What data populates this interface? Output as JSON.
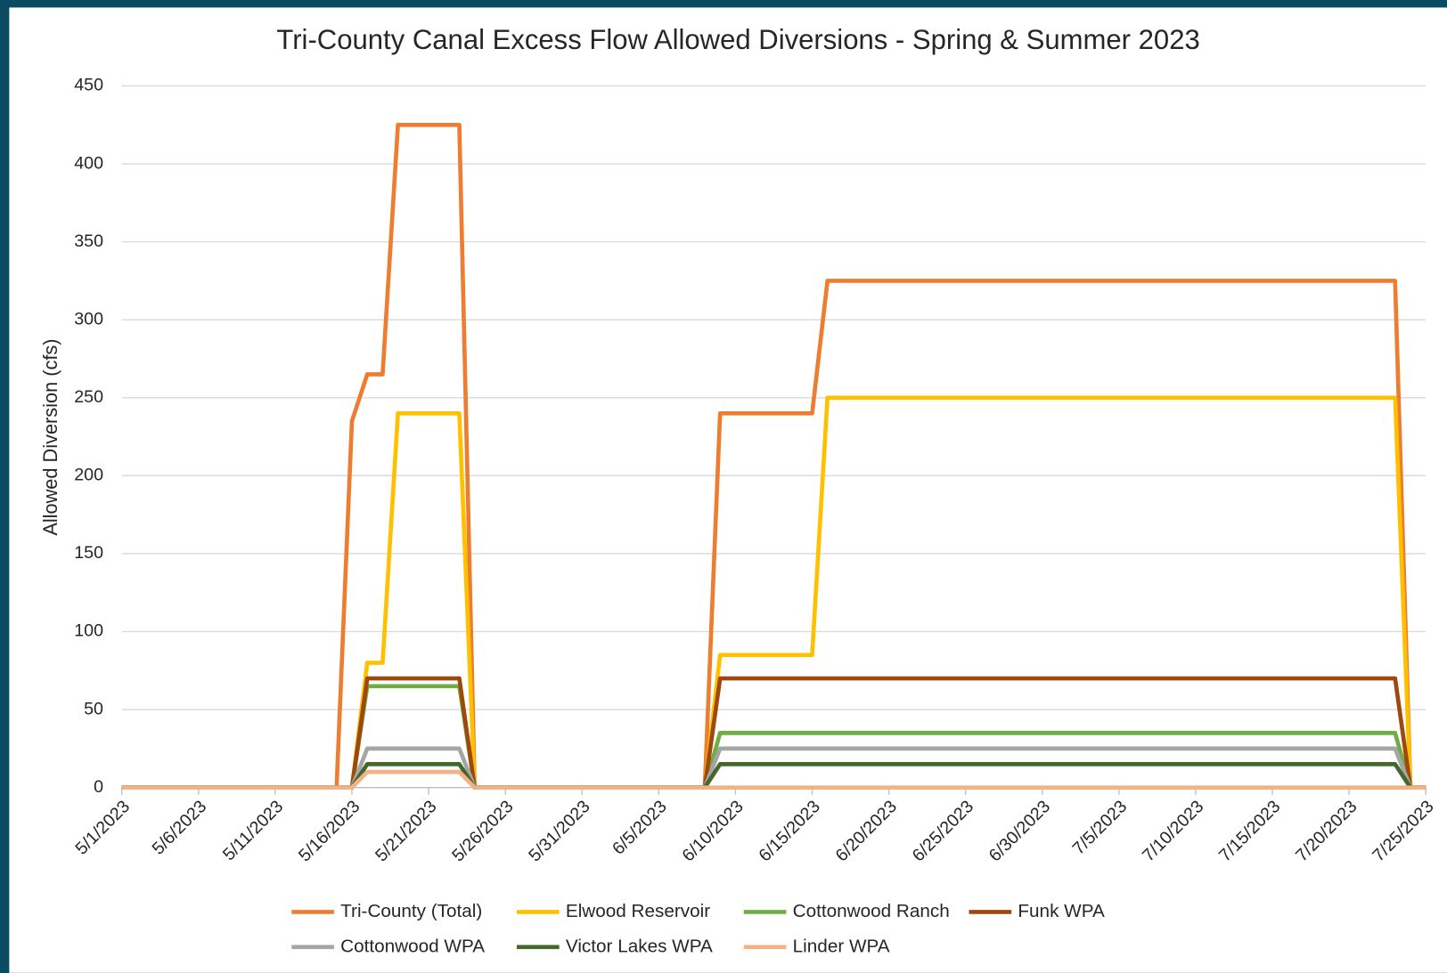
{
  "chart_data": {
    "type": "line",
    "title": "Tri-County Canal Excess Flow Allowed Diversions - Spring & Summer 2023",
    "y_label": "Allowed Diversion (cfs)",
    "x": [
      "5/1/2023",
      "5/15/2023",
      "5/16/2023",
      "5/17/2023",
      "5/18/2023",
      "5/19/2023",
      "5/23/2023",
      "5/24/2023",
      "6/8/2023",
      "6/9/2023",
      "6/15/2023",
      "6/16/2023",
      "7/23/2023",
      "7/24/2023",
      "7/25/2023"
    ],
    "series": [
      {
        "name": "Tri-County (Total)",
        "color": "#ed7d31",
        "values": [
          0,
          0,
          235,
          265,
          265,
          425,
          425,
          0,
          0,
          240,
          240,
          325,
          325,
          0,
          0
        ]
      },
      {
        "name": "Elwood Reservoir",
        "color": "#ffc000",
        "values": [
          0,
          0,
          0,
          80,
          80,
          240,
          240,
          0,
          0,
          85,
          85,
          250,
          250,
          0,
          0
        ]
      },
      {
        "name": "Cottonwood Ranch",
        "color": "#70ad47",
        "values": [
          0,
          0,
          0,
          65,
          65,
          65,
          65,
          0,
          0,
          35,
          35,
          35,
          35,
          0,
          0
        ]
      },
      {
        "name": "Funk WPA",
        "color": "#9e480e",
        "values": [
          0,
          0,
          0,
          70,
          70,
          70,
          70,
          0,
          0,
          70,
          70,
          70,
          70,
          0,
          0
        ]
      },
      {
        "name": "Cottonwood WPA",
        "color": "#a5a5a5",
        "values": [
          0,
          0,
          0,
          25,
          25,
          25,
          25,
          0,
          0,
          25,
          25,
          25,
          25,
          0,
          0
        ]
      },
      {
        "name": "Victor Lakes WPA",
        "color": "#43682b",
        "values": [
          0,
          0,
          0,
          15,
          15,
          15,
          15,
          0,
          0,
          15,
          15,
          15,
          15,
          0,
          0
        ]
      },
      {
        "name": "Linder WPA",
        "color": "#f4b183",
        "values": [
          0,
          0,
          0,
          10,
          10,
          10,
          10,
          0,
          0,
          0,
          0,
          0,
          0,
          0,
          0
        ]
      }
    ],
    "xlim": [
      "5/1/2023",
      "7/25/2023"
    ],
    "xticks": [
      "5/1/2023",
      "5/6/2023",
      "5/11/2023",
      "5/16/2023",
      "5/21/2023",
      "5/26/2023",
      "5/31/2023",
      "6/5/2023",
      "6/10/2023",
      "6/15/2023",
      "6/20/2023",
      "6/25/2023",
      "6/30/2023",
      "7/5/2023",
      "7/10/2023",
      "7/15/2023",
      "7/20/2023",
      "7/25/2023"
    ],
    "ylim": [
      0,
      450
    ],
    "yticks": [
      0,
      50,
      100,
      150,
      200,
      250,
      300,
      350,
      400,
      450
    ],
    "grid": true,
    "legend": "bottom"
  }
}
